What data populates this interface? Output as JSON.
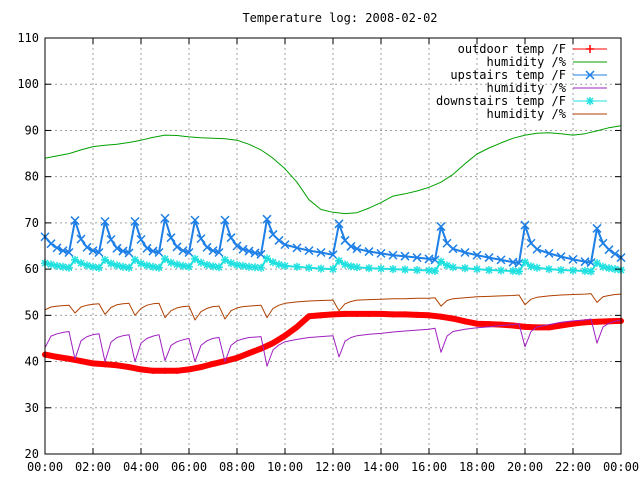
{
  "chart_data": {
    "type": "line",
    "title": "Temperature log: 2008-02-02",
    "xlabel": "",
    "ylabel": "",
    "xlim": [
      "00:00",
      "24:00"
    ],
    "ylim": [
      20,
      110
    ],
    "grid": true,
    "legend_position": "top-right",
    "x_ticks": [
      "00:00",
      "02:00",
      "04:00",
      "06:00",
      "08:00",
      "10:00",
      "12:00",
      "14:00",
      "16:00",
      "18:00",
      "20:00",
      "22:00",
      "00:00"
    ],
    "y_ticks": [
      20,
      30,
      40,
      50,
      60,
      70,
      80,
      90,
      100,
      110
    ],
    "series": [
      {
        "name": "outdoor temp /F",
        "color": "#ff0000",
        "marker": "plus",
        "x": [
          "00:00",
          "00:30",
          "01:00",
          "01:30",
          "02:00",
          "02:30",
          "03:00",
          "03:30",
          "04:00",
          "04:30",
          "05:00",
          "05:30",
          "06:00",
          "06:30",
          "07:00",
          "07:30",
          "08:00",
          "08:30",
          "09:00",
          "09:30",
          "10:00",
          "10:30",
          "11:00",
          "11:30",
          "12:00",
          "12:30",
          "13:00",
          "13:30",
          "14:00",
          "14:30",
          "15:00",
          "15:30",
          "16:00",
          "16:30",
          "17:00",
          "17:30",
          "18:00",
          "18:30",
          "19:00",
          "19:30",
          "20:00",
          "20:30",
          "21:00",
          "21:30",
          "22:00",
          "22:30",
          "23:00",
          "23:30",
          "24:00"
        ],
        "y": [
          41.5,
          41.0,
          40.6,
          40.1,
          39.6,
          39.4,
          39.2,
          38.8,
          38.3,
          38.0,
          38.0,
          38.0,
          38.3,
          38.8,
          39.5,
          40.1,
          40.8,
          41.8,
          42.8,
          44.0,
          45.6,
          47.5,
          49.8,
          50.0,
          50.2,
          50.3,
          50.3,
          50.3,
          50.3,
          50.2,
          50.2,
          50.1,
          50.0,
          49.7,
          49.3,
          48.7,
          48.2,
          48.1,
          48.0,
          47.8,
          47.5,
          47.4,
          47.4,
          47.8,
          48.2,
          48.5,
          48.6,
          48.7,
          48.8
        ]
      },
      {
        "name": "humidity /%",
        "color": "#00a000",
        "marker": "none",
        "x": [
          "00:00",
          "00:30",
          "01:00",
          "01:30",
          "02:00",
          "02:30",
          "03:00",
          "03:30",
          "04:00",
          "04:30",
          "05:00",
          "05:30",
          "06:00",
          "06:30",
          "07:00",
          "07:30",
          "08:00",
          "08:30",
          "09:00",
          "09:30",
          "10:00",
          "10:30",
          "11:00",
          "11:30",
          "12:00",
          "12:30",
          "13:00",
          "13:30",
          "14:00",
          "14:30",
          "15:00",
          "15:30",
          "16:00",
          "16:30",
          "17:00",
          "17:30",
          "18:00",
          "18:30",
          "19:00",
          "19:30",
          "20:00",
          "20:30",
          "21:00",
          "21:30",
          "22:00",
          "22:30",
          "23:00",
          "23:30",
          "24:00"
        ],
        "y": [
          84.0,
          84.5,
          85.0,
          85.8,
          86.5,
          86.8,
          87.0,
          87.4,
          87.9,
          88.5,
          89.0,
          88.9,
          88.6,
          88.4,
          88.3,
          88.2,
          87.9,
          87.0,
          85.8,
          84.0,
          81.7,
          78.8,
          75.0,
          72.9,
          72.3,
          72.0,
          72.2,
          73.2,
          74.4,
          75.8,
          76.3,
          76.9,
          77.7,
          78.8,
          80.5,
          82.8,
          84.9,
          86.2,
          87.3,
          88.3,
          89.0,
          89.4,
          89.5,
          89.3,
          89.0,
          89.3,
          89.9,
          90.6,
          91.0
        ]
      },
      {
        "name": "upstairs temp /F",
        "color": "#1e7fe6",
        "marker": "x",
        "x": [
          "00:00",
          "00:15",
          "00:30",
          "00:45",
          "01:00",
          "01:15",
          "01:30",
          "01:45",
          "02:00",
          "02:15",
          "02:30",
          "02:45",
          "03:00",
          "03:15",
          "03:30",
          "03:45",
          "04:00",
          "04:15",
          "04:30",
          "04:45",
          "05:00",
          "05:15",
          "05:30",
          "05:45",
          "06:00",
          "06:15",
          "06:30",
          "06:45",
          "07:00",
          "07:15",
          "07:30",
          "07:45",
          "08:00",
          "08:15",
          "08:30",
          "08:45",
          "09:00",
          "09:15",
          "09:30",
          "09:45",
          "10:00",
          "10:30",
          "11:00",
          "11:30",
          "12:00",
          "12:15",
          "12:30",
          "12:45",
          "13:00",
          "13:30",
          "14:00",
          "14:30",
          "15:00",
          "15:30",
          "16:00",
          "16:15",
          "16:30",
          "16:45",
          "17:00",
          "17:30",
          "18:00",
          "18:30",
          "19:00",
          "19:30",
          "19:45",
          "20:00",
          "20:15",
          "20:30",
          "21:00",
          "21:30",
          "22:00",
          "22:30",
          "22:45",
          "23:00",
          "23:15",
          "23:30",
          "23:45",
          "24:00"
        ],
        "y": [
          67.0,
          65.5,
          64.6,
          64.0,
          63.6,
          70.5,
          66.5,
          64.7,
          64.0,
          63.6,
          70.3,
          66.4,
          64.5,
          63.9,
          63.5,
          70.3,
          66.4,
          64.5,
          63.9,
          63.6,
          71.0,
          66.8,
          64.8,
          64.0,
          63.6,
          70.6,
          66.6,
          64.7,
          64.0,
          63.6,
          70.6,
          66.8,
          65.0,
          64.3,
          63.9,
          63.5,
          63.2,
          70.8,
          67.5,
          66.2,
          65.3,
          64.6,
          64.0,
          63.6,
          63.1,
          69.8,
          66.2,
          64.9,
          64.4,
          63.8,
          63.4,
          63.0,
          62.8,
          62.5,
          62.2,
          62.0,
          69.2,
          65.6,
          64.4,
          63.6,
          63.0,
          62.5,
          62.0,
          61.5,
          61.3,
          69.5,
          65.6,
          64.3,
          63.4,
          62.7,
          62.1,
          61.6,
          61.4,
          68.8,
          65.6,
          64.2,
          63.3,
          62.5
        ]
      },
      {
        "name": "humidity /%",
        "color": "#a020c0",
        "marker": "none",
        "x": [
          "00:00",
          "00:15",
          "00:30",
          "00:45",
          "01:00",
          "01:15",
          "01:30",
          "01:45",
          "02:00",
          "02:15",
          "02:30",
          "02:45",
          "03:00",
          "03:15",
          "03:30",
          "03:45",
          "04:00",
          "04:15",
          "04:30",
          "04:45",
          "05:00",
          "05:15",
          "05:30",
          "05:45",
          "06:00",
          "06:15",
          "06:30",
          "06:45",
          "07:00",
          "07:15",
          "07:30",
          "07:45",
          "08:00",
          "08:15",
          "08:30",
          "08:45",
          "09:00",
          "09:15",
          "09:30",
          "09:45",
          "10:00",
          "10:30",
          "11:00",
          "11:30",
          "12:00",
          "12:15",
          "12:30",
          "12:45",
          "13:00",
          "13:30",
          "14:00",
          "14:30",
          "15:00",
          "15:30",
          "16:00",
          "16:15",
          "16:30",
          "16:45",
          "17:00",
          "17:30",
          "18:00",
          "18:30",
          "19:00",
          "19:30",
          "19:45",
          "20:00",
          "20:15",
          "20:30",
          "21:00",
          "21:30",
          "22:00",
          "22:30",
          "22:45",
          "23:00",
          "23:15",
          "23:30",
          "23:45",
          "24:00"
        ],
        "y": [
          43.0,
          45.5,
          46.0,
          46.3,
          46.5,
          40.5,
          44.5,
          45.4,
          45.8,
          46.0,
          40.0,
          44.2,
          45.2,
          45.6,
          45.8,
          40.0,
          44.0,
          45.0,
          45.5,
          45.8,
          40.2,
          43.5,
          44.3,
          44.7,
          45.0,
          40.0,
          43.5,
          44.5,
          45.0,
          45.2,
          40.0,
          43.5,
          44.5,
          44.9,
          45.2,
          45.3,
          45.4,
          39.0,
          42.5,
          43.6,
          44.3,
          44.8,
          45.2,
          45.4,
          45.6,
          41.0,
          44.4,
          45.2,
          45.6,
          45.9,
          46.1,
          46.4,
          46.6,
          46.8,
          47.0,
          47.2,
          42.0,
          45.5,
          46.5,
          47.0,
          47.3,
          47.5,
          47.8,
          48.0,
          48.2,
          43.2,
          46.5,
          47.5,
          48.0,
          48.5,
          48.8,
          49.0,
          49.2,
          44.0,
          47.5,
          48.3,
          48.7,
          49.0
        ]
      },
      {
        "name": "downstairs temp /F",
        "color": "#20e0e0",
        "marker": "star",
        "x": [
          "00:00",
          "00:15",
          "00:30",
          "00:45",
          "01:00",
          "01:15",
          "01:30",
          "01:45",
          "02:00",
          "02:15",
          "02:30",
          "02:45",
          "03:00",
          "03:15",
          "03:30",
          "03:45",
          "04:00",
          "04:15",
          "04:30",
          "04:45",
          "05:00",
          "05:15",
          "05:30",
          "05:45",
          "06:00",
          "06:15",
          "06:30",
          "06:45",
          "07:00",
          "07:15",
          "07:30",
          "07:45",
          "08:00",
          "08:15",
          "08:30",
          "08:45",
          "09:00",
          "09:15",
          "09:30",
          "09:45",
          "10:00",
          "10:30",
          "11:00",
          "11:30",
          "12:00",
          "12:15",
          "12:30",
          "12:45",
          "13:00",
          "13:30",
          "14:00",
          "14:30",
          "15:00",
          "15:30",
          "16:00",
          "16:15",
          "16:30",
          "16:45",
          "17:00",
          "17:30",
          "18:00",
          "18:30",
          "19:00",
          "19:30",
          "19:45",
          "20:00",
          "20:15",
          "20:30",
          "21:00",
          "21:30",
          "22:00",
          "22:30",
          "22:45",
          "23:00",
          "23:15",
          "23:30",
          "23:45",
          "24:00"
        ],
        "y": [
          61.3,
          61.0,
          60.7,
          60.5,
          60.3,
          62.0,
          61.3,
          60.8,
          60.5,
          60.3,
          62.0,
          61.2,
          60.8,
          60.5,
          60.3,
          62.0,
          61.2,
          60.8,
          60.5,
          60.3,
          62.2,
          61.4,
          61.0,
          60.7,
          60.5,
          62.2,
          61.4,
          60.9,
          60.6,
          60.4,
          62.0,
          61.3,
          60.9,
          60.7,
          60.5,
          60.4,
          60.3,
          62.3,
          61.5,
          61.0,
          60.7,
          60.5,
          60.3,
          60.1,
          60.0,
          61.8,
          61.0,
          60.6,
          60.4,
          60.2,
          60.1,
          60.0,
          59.9,
          59.8,
          59.7,
          59.6,
          61.6,
          60.8,
          60.4,
          60.2,
          60.0,
          59.8,
          59.7,
          59.6,
          59.5,
          61.5,
          60.6,
          60.3,
          60.0,
          59.8,
          59.7,
          59.6,
          59.5,
          61.3,
          60.5,
          60.2,
          60.0,
          59.8
        ]
      },
      {
        "name": "humidity /%",
        "color": "#b04000",
        "marker": "none",
        "x": [
          "00:00",
          "00:15",
          "00:30",
          "00:45",
          "01:00",
          "01:15",
          "01:30",
          "01:45",
          "02:00",
          "02:15",
          "02:30",
          "02:45",
          "03:00",
          "03:15",
          "03:30",
          "03:45",
          "04:00",
          "04:15",
          "04:30",
          "04:45",
          "05:00",
          "05:15",
          "05:30",
          "05:45",
          "06:00",
          "06:15",
          "06:30",
          "06:45",
          "07:00",
          "07:15",
          "07:30",
          "07:45",
          "08:00",
          "08:15",
          "08:30",
          "08:45",
          "09:00",
          "09:15",
          "09:30",
          "09:45",
          "10:00",
          "10:30",
          "11:00",
          "11:30",
          "12:00",
          "12:15",
          "12:30",
          "12:45",
          "13:00",
          "13:30",
          "14:00",
          "14:30",
          "15:00",
          "15:30",
          "16:00",
          "16:15",
          "16:30",
          "16:45",
          "17:00",
          "17:30",
          "18:00",
          "18:30",
          "19:00",
          "19:30",
          "19:45",
          "20:00",
          "20:15",
          "20:30",
          "21:00",
          "21:30",
          "22:00",
          "22:30",
          "22:45",
          "23:00",
          "23:15",
          "23:30",
          "23:45",
          "24:00"
        ],
        "y": [
          51.2,
          51.8,
          52.0,
          52.1,
          52.2,
          50.5,
          51.8,
          52.2,
          52.4,
          52.5,
          50.2,
          51.7,
          52.3,
          52.5,
          52.6,
          50.0,
          51.5,
          52.2,
          52.5,
          52.6,
          49.5,
          51.0,
          51.6,
          51.9,
          52.0,
          49.0,
          50.8,
          51.5,
          51.9,
          52.0,
          49.2,
          51.0,
          51.6,
          51.9,
          52.0,
          52.1,
          52.2,
          49.5,
          51.5,
          52.2,
          52.6,
          52.9,
          53.1,
          53.2,
          53.3,
          51.0,
          52.5,
          53.0,
          53.3,
          53.4,
          53.5,
          53.6,
          53.6,
          53.7,
          53.7,
          53.8,
          52.0,
          53.2,
          53.6,
          53.8,
          54.0,
          54.1,
          54.2,
          54.3,
          54.4,
          52.3,
          53.5,
          53.9,
          54.2,
          54.4,
          54.5,
          54.6,
          54.7,
          52.8,
          54.0,
          54.3,
          54.5,
          54.6
        ]
      }
    ]
  }
}
